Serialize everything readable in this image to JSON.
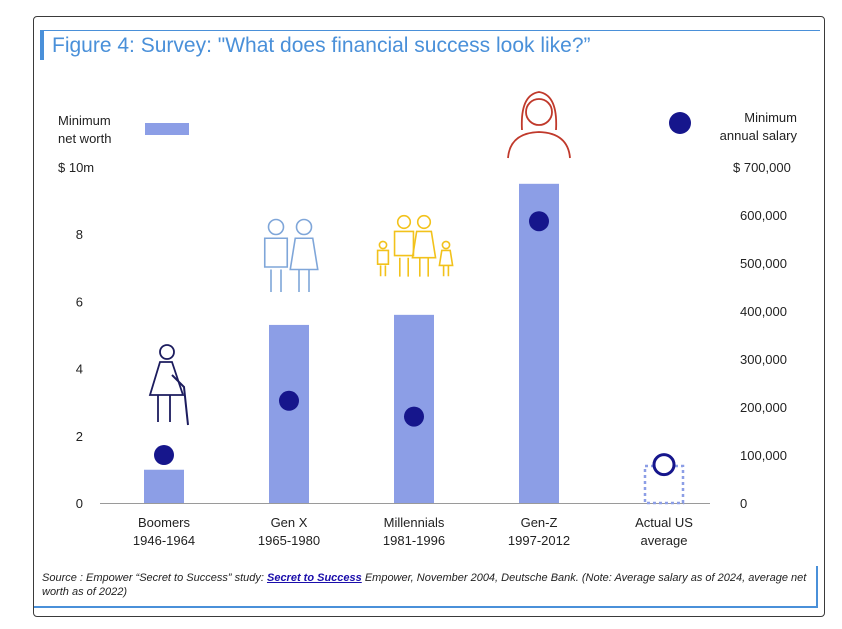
{
  "title": "Figure 4: Survey: \"What does financial success look like?”",
  "source": {
    "prefix": "Source : Empower “Secret to Success” study: ",
    "link": "Secret to Success",
    "suffix": " Empower, November 2004, Deutsche Bank. (Note: Average salary as of 2024, average net worth as of 2022)"
  },
  "colors": {
    "bar": "#8c9ee6",
    "dot": "#16168c",
    "title": "#4a90d9",
    "icon_gen": "#7fa6d9",
    "icon_mil": "#f2c21b",
    "icon_genz": "#c0392b",
    "icon_boomer": "#1c1c5e"
  },
  "chart_data": {
    "type": "bar",
    "categories": [
      [
        "Boomers",
        "1946-1964"
      ],
      [
        "Gen X",
        "1965-1980"
      ],
      [
        "Millennials",
        "1981-1996"
      ],
      [
        "Gen-Z",
        "1997-2012"
      ],
      [
        "Actual US",
        "average"
      ]
    ],
    "left_axis": {
      "label_lines": [
        "Minimum",
        "net worth"
      ],
      "unit": "$ 10m",
      "ylim": [
        0,
        10
      ],
      "ticks": [
        "0",
        "2",
        "4",
        "6",
        "8"
      ]
    },
    "right_axis": {
      "label_lines": [
        "Minimum",
        "annual salary"
      ],
      "unit": "$ 700,000",
      "ylim": [
        0,
        700000
      ],
      "ticks": [
        "0",
        "100,000",
        "200,000",
        "300,000",
        "400,000",
        "500,000",
        "600,000"
      ]
    },
    "series": [
      {
        "name": "Minimum net worth",
        "axis": "left",
        "marker": "bar",
        "values": [
          0.99,
          5.3,
          5.6,
          9.5,
          1.1
        ]
      },
      {
        "name": "Minimum annual salary",
        "axis": "right",
        "marker": "dot",
        "values": [
          100000,
          213000,
          180000,
          587000,
          80000
        ]
      }
    ],
    "actual_us_style": "outlined",
    "icons": [
      "elderly-person-icon",
      "couple-icon",
      "family-icon",
      "woman-icon",
      ""
    ]
  }
}
